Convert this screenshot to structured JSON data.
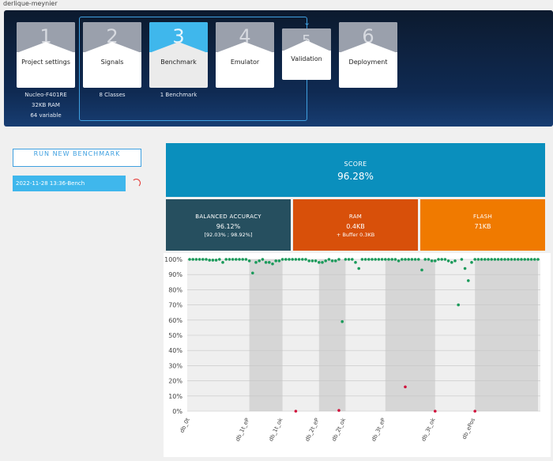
{
  "user": "derlique-meynier",
  "steps": [
    {
      "num": "1",
      "label": "Project settings"
    },
    {
      "num": "2",
      "label": "Signals"
    },
    {
      "num": "3",
      "label": "Benchmark"
    },
    {
      "num": "4",
      "label": "Emulator"
    },
    {
      "num": "5",
      "label": "Validation"
    },
    {
      "num": "6",
      "label": "Deployment"
    }
  ],
  "step_info": {
    "board": "Nucleo-F401RE",
    "ram": "32KB RAM",
    "variable": "64 variable",
    "classes": "8 Classes",
    "benchmarks": "1 Benchmark"
  },
  "run_button": "RUN NEW BENCHMARK",
  "benchmarks": [
    {
      "label": "2022-11-28 13:36-Bench"
    }
  ],
  "score": {
    "title": "SCORE",
    "value": "96.28%"
  },
  "accuracy": {
    "title": "BALANCED ACCURACY",
    "value": "96.12%",
    "range": "[92.03% ; 98.92%]"
  },
  "ram": {
    "title": "RAM",
    "value": "0.4KB",
    "sub": "+ Buffer 0.3KB"
  },
  "flash": {
    "title": "FLASH",
    "value": "71KB"
  },
  "colors": {
    "score": "#0a8fbd",
    "accuracy": "#264f5f",
    "ram": "#d8500a",
    "flash": "#f07a00",
    "accent": "#3fb7ec",
    "ok_point": "#1a9a5a",
    "fail_point": "#d0103a"
  },
  "chart_data": {
    "type": "scatter",
    "ylim": [
      0,
      100
    ],
    "yticks": [
      "0%",
      "10%",
      "20%",
      "30%",
      "40%",
      "50%",
      "60%",
      "70%",
      "80%",
      "90%",
      "100%"
    ],
    "xtick_labels": [
      "db_0t",
      "db_1t_eP",
      "db_1t_ok",
      "db_2t_eP",
      "db_2t_ok",
      "db_3t_eP",
      "db_3t_ok",
      "db_ePos"
    ],
    "xtick_positions": [
      0,
      18,
      28,
      39,
      47,
      59,
      74,
      86
    ],
    "shaded_regions": [
      [
        18,
        28
      ],
      [
        39,
        47
      ],
      [
        59,
        74
      ],
      [
        86,
        105
      ]
    ],
    "x_max": 105,
    "ok_points": [
      [
        0,
        100
      ],
      [
        1,
        100
      ],
      [
        2,
        100
      ],
      [
        3,
        100
      ],
      [
        4,
        100
      ],
      [
        5,
        100
      ],
      [
        6,
        99.5
      ],
      [
        7,
        99.5
      ],
      [
        8,
        99.5
      ],
      [
        9,
        100
      ],
      [
        10,
        98
      ],
      [
        11,
        100
      ],
      [
        12,
        100
      ],
      [
        13,
        100
      ],
      [
        14,
        100
      ],
      [
        15,
        100
      ],
      [
        16,
        100
      ],
      [
        17,
        100
      ],
      [
        18,
        99
      ],
      [
        19,
        91
      ],
      [
        20,
        98
      ],
      [
        21,
        99
      ],
      [
        22,
        100
      ],
      [
        23,
        98
      ],
      [
        24,
        98
      ],
      [
        25,
        97
      ],
      [
        26,
        99
      ],
      [
        27,
        99
      ],
      [
        28,
        100
      ],
      [
        29,
        100
      ],
      [
        30,
        100
      ],
      [
        31,
        100
      ],
      [
        32,
        100
      ],
      [
        33,
        100
      ],
      [
        34,
        100
      ],
      [
        35,
        100
      ],
      [
        36,
        99
      ],
      [
        37,
        99
      ],
      [
        38,
        99
      ],
      [
        39,
        98
      ],
      [
        40,
        98
      ],
      [
        41,
        99
      ],
      [
        42,
        100
      ],
      [
        43,
        99
      ],
      [
        44,
        99
      ],
      [
        45,
        100
      ],
      [
        46,
        59
      ],
      [
        47,
        100
      ],
      [
        48,
        100
      ],
      [
        49,
        100
      ],
      [
        50,
        98
      ],
      [
        51,
        94
      ],
      [
        52,
        100
      ],
      [
        53,
        100
      ],
      [
        54,
        100
      ],
      [
        55,
        100
      ],
      [
        56,
        100
      ],
      [
        57,
        100
      ],
      [
        58,
        100
      ],
      [
        59,
        100
      ],
      [
        60,
        100
      ],
      [
        61,
        100
      ],
      [
        62,
        100
      ],
      [
        63,
        99
      ],
      [
        64,
        100
      ],
      [
        65,
        100
      ],
      [
        66,
        100
      ],
      [
        67,
        100
      ],
      [
        68,
        100
      ],
      [
        69,
        100
      ],
      [
        70,
        93
      ],
      [
        71,
        100
      ],
      [
        72,
        100
      ],
      [
        73,
        99
      ],
      [
        74,
        99
      ],
      [
        75,
        100
      ],
      [
        76,
        100
      ],
      [
        77,
        100
      ],
      [
        78,
        99
      ],
      [
        79,
        98
      ],
      [
        80,
        99
      ],
      [
        81,
        70
      ],
      [
        82,
        100
      ],
      [
        83,
        94
      ],
      [
        84,
        86
      ],
      [
        85,
        98
      ],
      [
        86,
        100
      ],
      [
        87,
        100
      ],
      [
        88,
        100
      ],
      [
        89,
        100
      ],
      [
        90,
        100
      ],
      [
        91,
        100
      ],
      [
        92,
        100
      ],
      [
        93,
        100
      ],
      [
        94,
        100
      ],
      [
        95,
        100
      ],
      [
        96,
        100
      ],
      [
        97,
        100
      ],
      [
        98,
        100
      ],
      [
        99,
        100
      ],
      [
        100,
        100
      ],
      [
        101,
        100
      ],
      [
        102,
        100
      ],
      [
        103,
        100
      ],
      [
        104,
        100
      ],
      [
        105,
        100
      ]
    ],
    "fail_points": [
      [
        32,
        0
      ],
      [
        45,
        0.5
      ],
      [
        65,
        16
      ],
      [
        74,
        0
      ],
      [
        86,
        0
      ]
    ]
  }
}
